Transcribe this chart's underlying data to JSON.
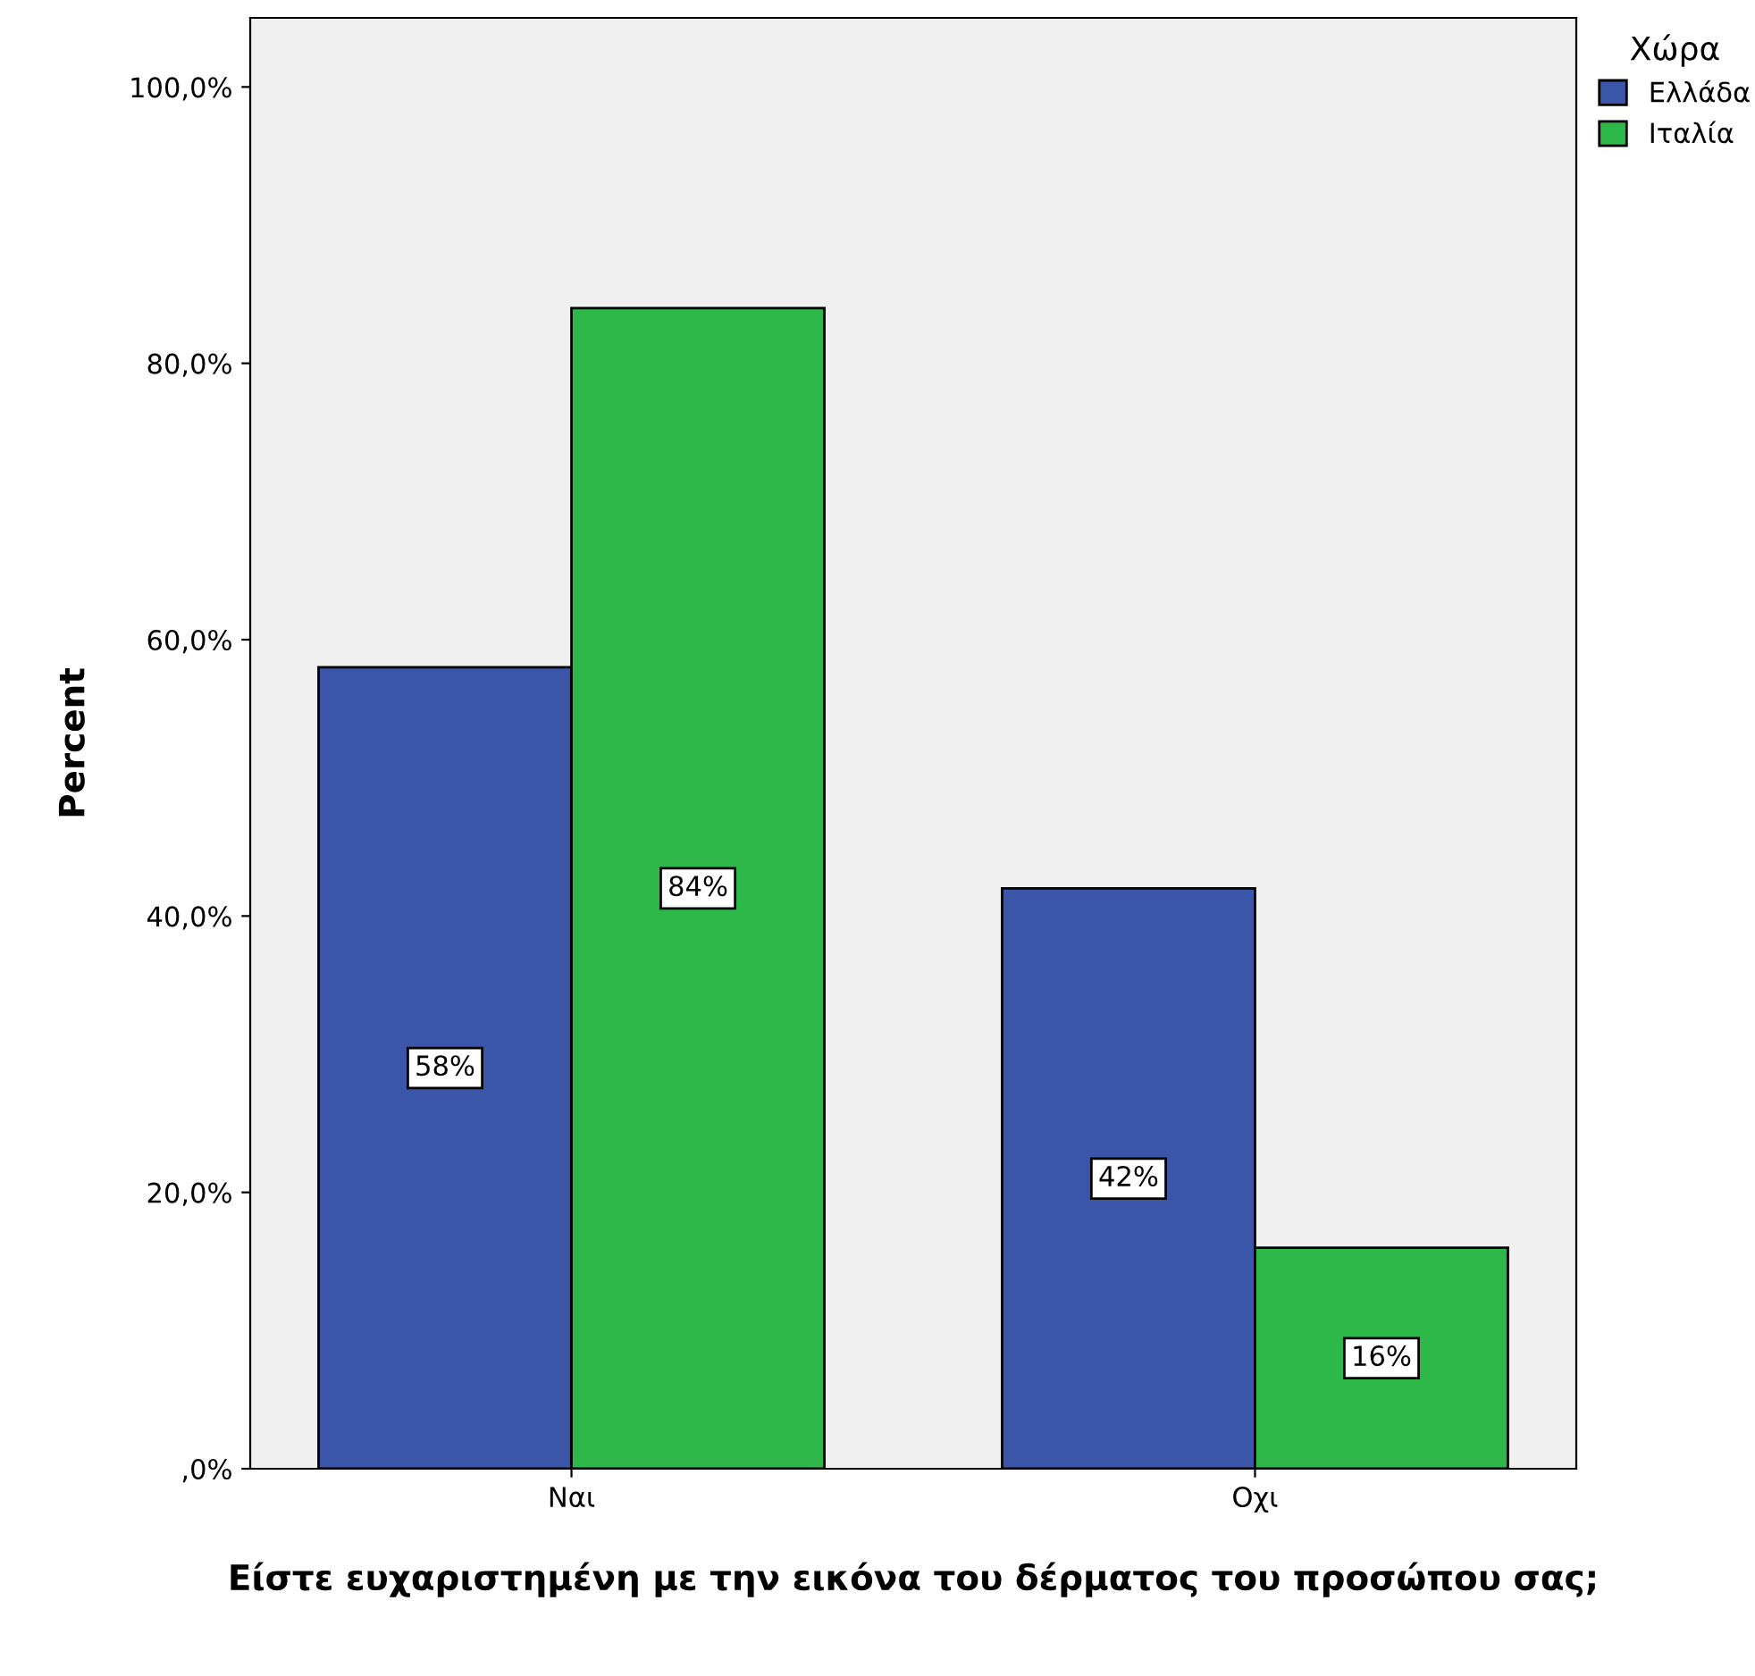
{
  "chart_data": {
    "type": "bar",
    "xlabel": "Είστε ευχαριστημένη με την εικόνα του δέρματος του προσώπου σας;",
    "ylabel": "Percent",
    "legend_title": "Χώρα",
    "categories": [
      "Ναι",
      "Οχι"
    ],
    "series": [
      {
        "name": "Ελλάδα",
        "color": "#3b55a8",
        "values": [
          58,
          42
        ],
        "value_labels": [
          "58%",
          "42%"
        ]
      },
      {
        "name": "Ιταλία",
        "color": "#2fb84a",
        "values": [
          84,
          16
        ],
        "value_labels": [
          "84%",
          "16%"
        ]
      }
    ],
    "ylim": [
      0,
      105
    ],
    "yticks": [
      {
        "value": 0,
        "label": ",0%"
      },
      {
        "value": 20,
        "label": "20,0%"
      },
      {
        "value": 40,
        "label": "40,0%"
      },
      {
        "value": 60,
        "label": "60,0%"
      },
      {
        "value": 80,
        "label": "80,0%"
      },
      {
        "value": 100,
        "label": "100,0%"
      }
    ],
    "grid": false,
    "legend": "right"
  }
}
